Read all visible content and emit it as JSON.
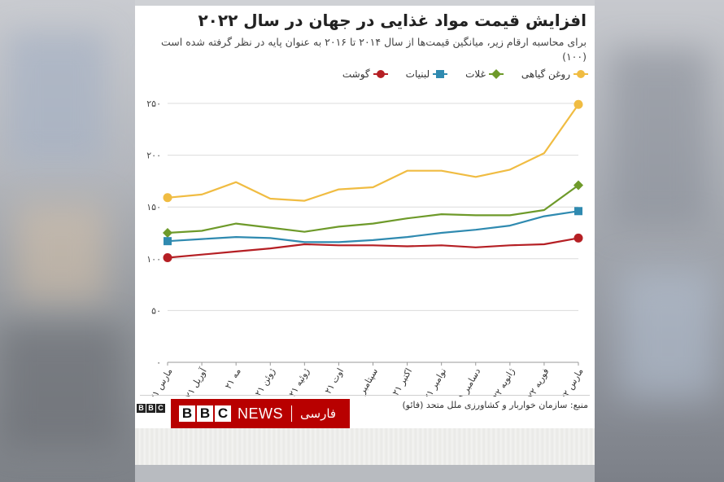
{
  "title": "افزایش قیمت مواد غذایی در جهان در سال ۲۰۲۲",
  "subtitle": "برای محاسبه ارقام زیر، میانگین قیمت‌ها از سال ۲۰۱۴ تا ۲۰۱۶ به عنوان پایه در نظر گرفته شده است (۱۰۰)",
  "source": "منبع: سازمان خواربار و کشاورزی ملل متحد (فائو)",
  "brand": {
    "small_blocks": [
      "B",
      "B",
      "C"
    ],
    "blocks": [
      "B",
      "B",
      "C"
    ],
    "news": "NEWS",
    "lang": "فارسی"
  },
  "chart_data": {
    "type": "line",
    "categories": [
      "مارس ۲۱",
      "آوریل ۲۱",
      "مه ۲۱",
      "ژوئن ۲۱",
      "ژوئیه ۲۱",
      "اوت ۲۱",
      "سپتامبر ۲۱",
      "اکتبر ۲۱",
      "نوامبر ۲۱",
      "دسامبر ۲۱",
      "ژانویه ۲۲",
      "فوریه ۲۲",
      "مارس ۲۲"
    ],
    "ylim": [
      0,
      250
    ],
    "yticks": [
      0,
      50,
      100,
      150,
      200,
      250
    ],
    "ytick_labels": [
      "۰",
      "۵۰",
      "۱۰۰",
      "۱۵۰",
      "۲۰۰",
      "۲۵۰"
    ],
    "grid": true,
    "legend_position": "top",
    "series": [
      {
        "name": "روغن گیاهی",
        "color": "#f0bc42",
        "marker": "circle",
        "values": [
          159,
          162,
          174,
          158,
          156,
          167,
          169,
          185,
          185,
          179,
          186,
          202,
          249
        ]
      },
      {
        "name": "غلات",
        "color": "#6e9a2a",
        "marker": "diamond",
        "values": [
          125,
          127,
          134,
          130,
          126,
          131,
          134,
          139,
          143,
          142,
          142,
          147,
          171
        ]
      },
      {
        "name": "لبنیات",
        "color": "#2f8ab0",
        "marker": "square",
        "values": [
          117,
          119,
          121,
          120,
          116,
          116,
          118,
          121,
          125,
          128,
          132,
          141,
          146
        ]
      },
      {
        "name": "گوشت",
        "color": "#b51f24",
        "marker": "circle",
        "values": [
          101,
          104,
          107,
          110,
          114,
          113,
          113,
          112,
          113,
          111,
          113,
          114,
          120
        ]
      }
    ]
  }
}
